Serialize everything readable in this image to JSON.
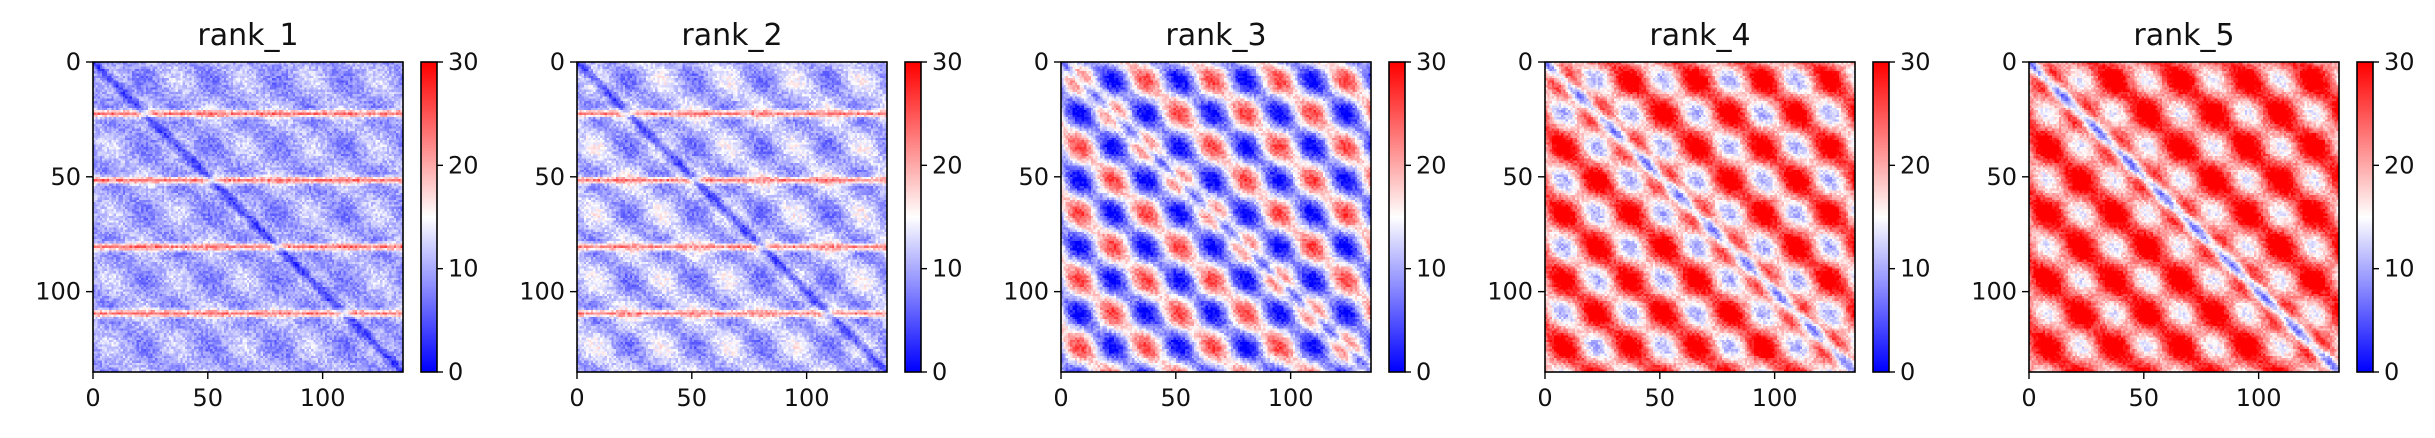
{
  "chart_data": [
    {
      "type": "heatmap",
      "title": "rank_1",
      "size": 135,
      "xlim": [
        0,
        135
      ],
      "ylim": [
        135,
        0
      ],
      "xticks": [
        0,
        50,
        100
      ],
      "yticks": [
        0,
        50,
        100
      ],
      "colorbar": {
        "min": 0,
        "max": 30,
        "ticks": [
          0,
          10,
          20,
          30
        ],
        "colormap": [
          "#0000ff",
          "#ffffff",
          "#ff0000"
        ]
      },
      "pattern": {
        "base": 10,
        "diag_width": 3,
        "diag_depth": 8,
        "period": 29,
        "phase": 22,
        "horizontal_stripes": [
          22,
          51,
          80,
          109
        ],
        "stripe_value": 23,
        "blob_amp": 2
      }
    },
    {
      "type": "heatmap",
      "title": "rank_2",
      "size": 135,
      "xlim": [
        0,
        135
      ],
      "ylim": [
        135,
        0
      ],
      "xticks": [
        0,
        50,
        100
      ],
      "yticks": [
        0,
        50,
        100
      ],
      "colorbar": {
        "min": 0,
        "max": 30,
        "ticks": [
          0,
          10,
          20,
          30
        ],
        "colormap": [
          "#0000ff",
          "#ffffff",
          "#ff0000"
        ]
      },
      "pattern": {
        "base": 11,
        "diag_width": 3,
        "diag_depth": 9,
        "period": 29,
        "phase": 22,
        "horizontal_stripes": [
          22,
          51,
          80,
          109
        ],
        "stripe_value": 22,
        "blob_amp": 3
      }
    },
    {
      "type": "heatmap",
      "title": "rank_3",
      "size": 135,
      "xlim": [
        0,
        135
      ],
      "ylim": [
        135,
        0
      ],
      "xticks": [
        0,
        50,
        100
      ],
      "yticks": [
        0,
        50,
        100
      ],
      "colorbar": {
        "min": 0,
        "max": 30,
        "ticks": [
          0,
          10,
          20,
          30
        ],
        "colormap": [
          "#0000ff",
          "#ffffff",
          "#ff0000"
        ]
      },
      "pattern": {
        "base": 13,
        "diag_width": 3,
        "diag_depth": 11,
        "period": 29,
        "phase": 22,
        "horizontal_stripes": [],
        "stripe_value": 0,
        "blob_amp": 9
      }
    },
    {
      "type": "heatmap",
      "title": "rank_4",
      "size": 135,
      "xlim": [
        0,
        135
      ],
      "ylim": [
        135,
        0
      ],
      "xticks": [
        0,
        50,
        100
      ],
      "yticks": [
        0,
        50,
        100
      ],
      "colorbar": {
        "min": 0,
        "max": 30,
        "ticks": [
          0,
          10,
          20,
          30
        ],
        "colormap": [
          "#0000ff",
          "#ffffff",
          "#ff0000"
        ]
      },
      "pattern": {
        "base": 22,
        "diag_width": 4,
        "diag_depth": 19,
        "period": 29,
        "phase": 22,
        "horizontal_stripes": [],
        "stripe_value": 0,
        "blob_amp": 8
      }
    },
    {
      "type": "heatmap",
      "title": "rank_5",
      "size": 135,
      "xlim": [
        0,
        135
      ],
      "ylim": [
        135,
        0
      ],
      "xticks": [
        0,
        50,
        100
      ],
      "yticks": [
        0,
        50,
        100
      ],
      "colorbar": {
        "min": 0,
        "max": 30,
        "ticks": [
          0,
          10,
          20,
          30
        ],
        "colormap": [
          "#0000ff",
          "#ffffff",
          "#ff0000"
        ]
      },
      "pattern": {
        "base": 24,
        "diag_width": 4,
        "diag_depth": 21,
        "period": 29,
        "phase": 22,
        "horizontal_stripes": [],
        "stripe_value": 0,
        "blob_amp": 7
      }
    }
  ]
}
